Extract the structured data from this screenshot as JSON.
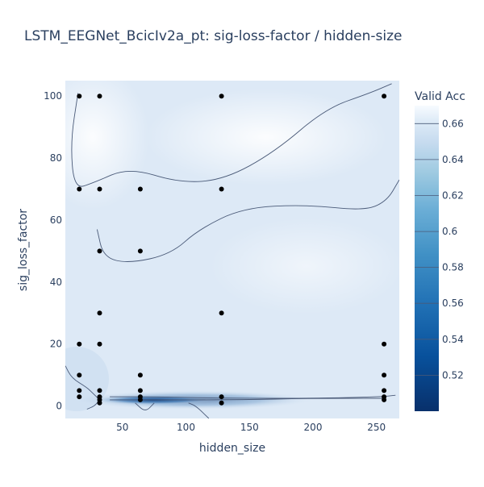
{
  "chart_data": {
    "type": "contour",
    "title": "LSTM_EEGNet_BcicIv2a_pt: sig-loss-factor / hidden-size",
    "xlabel": "hidden_size",
    "ylabel": "sig_loss_factor",
    "xlim": [
      5,
      268
    ],
    "ylim": [
      -4,
      105
    ],
    "x_ticks": [
      50,
      100,
      150,
      200,
      250
    ],
    "y_ticks": [
      0,
      20,
      40,
      60,
      80,
      100
    ],
    "grid": false,
    "colorbar": {
      "title": "Valid Acc",
      "range": [
        0.5,
        0.67
      ],
      "ticks": [
        0.52,
        0.54,
        0.56,
        0.58,
        0.6,
        0.62,
        0.64,
        0.66
      ],
      "tick_labels": [
        "0.52",
        "0.54",
        "0.56",
        "0.58",
        "0.6",
        "0.62",
        "0.64",
        "0.66"
      ],
      "colorscale": "Blues (reversed)",
      "low_color": "#08306b",
      "high_color": "#f7fbff"
    },
    "points": [
      {
        "x": 16,
        "y": 100
      },
      {
        "x": 32,
        "y": 100
      },
      {
        "x": 128,
        "y": 100
      },
      {
        "x": 256,
        "y": 100
      },
      {
        "x": 16,
        "y": 70
      },
      {
        "x": 32,
        "y": 70
      },
      {
        "x": 64,
        "y": 70
      },
      {
        "x": 128,
        "y": 70
      },
      {
        "x": 32,
        "y": 50
      },
      {
        "x": 64,
        "y": 50
      },
      {
        "x": 32,
        "y": 30
      },
      {
        "x": 128,
        "y": 30
      },
      {
        "x": 16,
        "y": 20
      },
      {
        "x": 32,
        "y": 20
      },
      {
        "x": 256,
        "y": 20
      },
      {
        "x": 16,
        "y": 10
      },
      {
        "x": 64,
        "y": 10
      },
      {
        "x": 256,
        "y": 10
      },
      {
        "x": 16,
        "y": 5
      },
      {
        "x": 32,
        "y": 5
      },
      {
        "x": 64,
        "y": 5
      },
      {
        "x": 256,
        "y": 5
      },
      {
        "x": 16,
        "y": 3
      },
      {
        "x": 32,
        "y": 3
      },
      {
        "x": 64,
        "y": 3
      },
      {
        "x": 128,
        "y": 3
      },
      {
        "x": 256,
        "y": 3
      },
      {
        "x": 32,
        "y": 2
      },
      {
        "x": 64,
        "y": 2
      },
      {
        "x": 256,
        "y": 2
      },
      {
        "x": 32,
        "y": 1
      },
      {
        "x": 128,
        "y": 1
      }
    ],
    "contour_lines": [
      [
        [
          15,
          101
        ],
        [
          9,
          85
        ],
        [
          12,
          70
        ],
        [
          27,
          72
        ],
        [
          55,
          77
        ],
        [
          95,
          72
        ],
        [
          130,
          73
        ],
        [
          170,
          82
        ],
        [
          210,
          96
        ],
        [
          245,
          101
        ],
        [
          262,
          104
        ]
      ],
      [
        [
          30,
          57
        ],
        [
          35,
          48
        ],
        [
          55,
          46
        ],
        [
          88,
          49
        ],
        [
          110,
          57
        ],
        [
          145,
          64
        ],
        [
          195,
          65
        ],
        [
          240,
          63
        ],
        [
          258,
          66
        ],
        [
          268,
          73
        ]
      ],
      [
        [
          5,
          13
        ],
        [
          10,
          9
        ],
        [
          22,
          6
        ],
        [
          27,
          4
        ],
        [
          32,
          2
        ],
        [
          28,
          0
        ],
        [
          22,
          -1
        ]
      ],
      [
        [
          40,
          3
        ],
        [
          75,
          3
        ],
        [
          130,
          2.5
        ],
        [
          200,
          2.5
        ],
        [
          255,
          3
        ],
        [
          265,
          3.5
        ]
      ],
      [
        [
          40,
          2
        ],
        [
          75,
          2
        ],
        [
          140,
          2
        ],
        [
          200,
          2.5
        ],
        [
          255,
          2.5
        ]
      ],
      [
        [
          60,
          1
        ],
        [
          68,
          -2
        ],
        [
          75,
          1
        ]
      ],
      [
        [
          118,
          -4
        ],
        [
          108,
          0
        ],
        [
          102,
          1
        ]
      ]
    ],
    "annotations": []
  }
}
